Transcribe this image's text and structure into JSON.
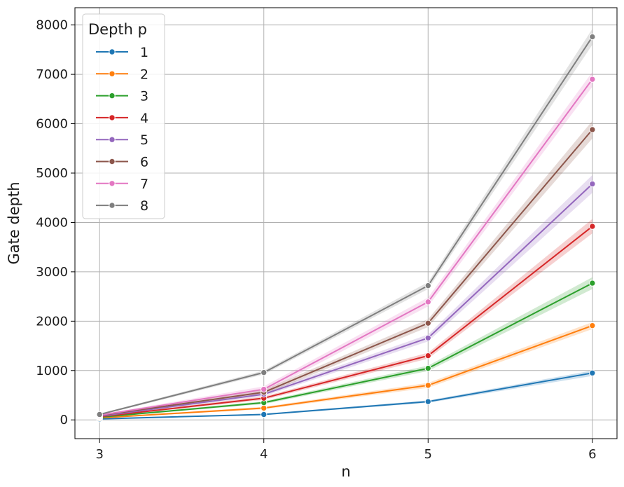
{
  "chart_data": {
    "type": "line",
    "xlabel": "n",
    "ylabel": "Gate depth",
    "x": [
      3,
      4,
      5,
      6
    ],
    "xticks": [
      3,
      4,
      5,
      6
    ],
    "xlim": [
      2.85,
      6.15
    ],
    "ylim": [
      -380,
      8350
    ],
    "yticks": [
      0,
      1000,
      2000,
      3000,
      4000,
      5000,
      6000,
      7000,
      8000
    ],
    "grid": true,
    "markers": true,
    "confidence_band": true,
    "legend": {
      "title": "Depth p",
      "placement": "top-left"
    },
    "series": [
      {
        "name": "1",
        "color": "#1f77b4",
        "values": [
          20,
          110,
          370,
          950
        ],
        "band": [
          [
            15,
            25
          ],
          [
            95,
            125
          ],
          [
            345,
            395
          ],
          [
            890,
            1000
          ]
        ]
      },
      {
        "name": "2",
        "color": "#ff7f0e",
        "values": [
          40,
          240,
          700,
          1910
        ],
        "band": [
          [
            30,
            50
          ],
          [
            215,
            265
          ],
          [
            650,
            750
          ],
          [
            1840,
            1980
          ]
        ]
      },
      {
        "name": "3",
        "color": "#2ca02c",
        "values": [
          55,
          350,
          1045,
          2770
        ],
        "band": [
          [
            45,
            65
          ],
          [
            320,
            380
          ],
          [
            990,
            1100
          ],
          [
            2650,
            2890
          ]
        ]
      },
      {
        "name": "4",
        "color": "#d62728",
        "values": [
          65,
          440,
          1300,
          3920
        ],
        "band": [
          [
            55,
            75
          ],
          [
            405,
            475
          ],
          [
            1240,
            1360
          ],
          [
            3780,
            4070
          ]
        ]
      },
      {
        "name": "5",
        "color": "#9467bd",
        "values": [
          75,
          520,
          1660,
          4780
        ],
        "band": [
          [
            62,
            88
          ],
          [
            480,
            560
          ],
          [
            1590,
            1730
          ],
          [
            4600,
            4960
          ]
        ]
      },
      {
        "name": "6",
        "color": "#8c564b",
        "values": [
          90,
          560,
          1960,
          5880
        ],
        "band": [
          [
            75,
            105
          ],
          [
            510,
            610
          ],
          [
            1880,
            2040
          ],
          [
            5700,
            6060
          ]
        ]
      },
      {
        "name": "7",
        "color": "#e377c2",
        "values": [
          95,
          620,
          2390,
          6900
        ],
        "band": [
          [
            80,
            110
          ],
          [
            560,
            680
          ],
          [
            2300,
            2480
          ],
          [
            6750,
            7050
          ]
        ]
      },
      {
        "name": "8",
        "color": "#7f7f7f",
        "values": [
          110,
          960,
          2720,
          7760
        ],
        "band": [
          [
            95,
            125
          ],
          [
            920,
            1000
          ],
          [
            2650,
            2790
          ],
          [
            7600,
            7920
          ]
        ]
      }
    ]
  }
}
